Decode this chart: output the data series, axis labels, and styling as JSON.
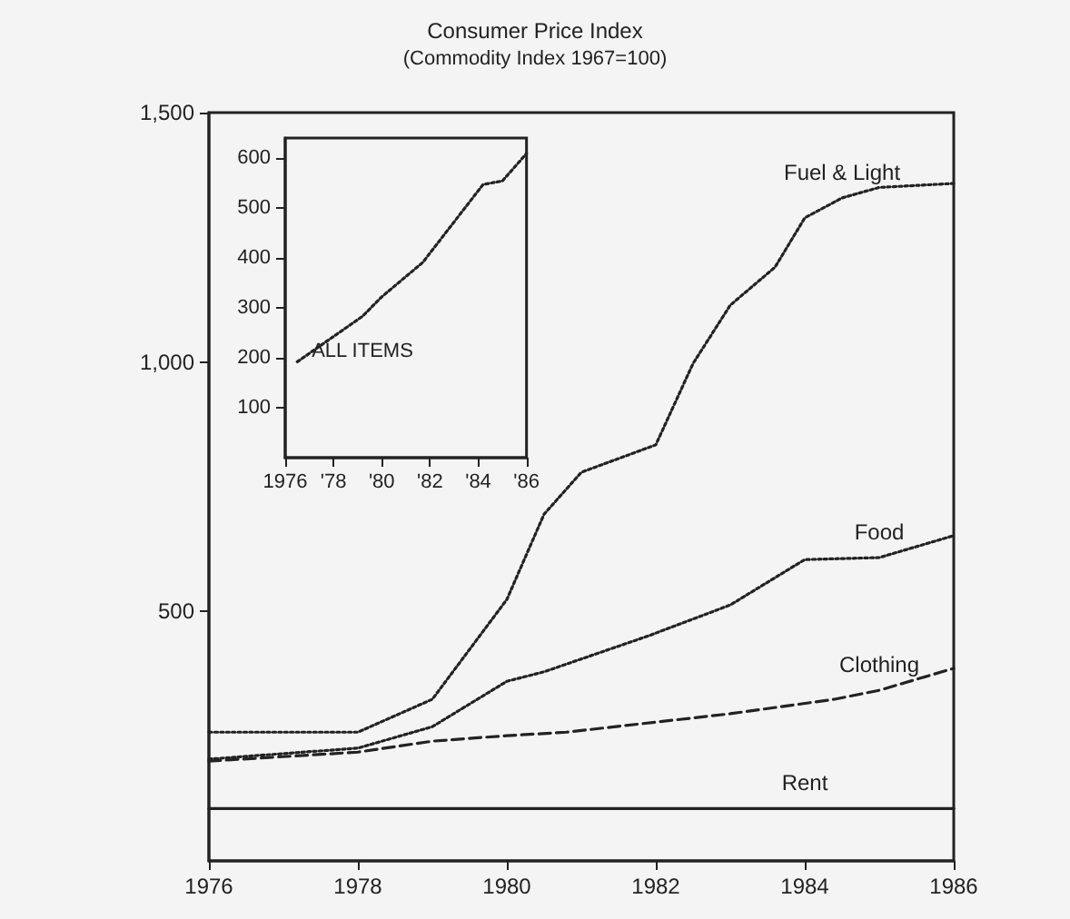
{
  "chart_data": [
    {
      "type": "line",
      "title": "Consumer Price Index",
      "subtitle": "(Commodity Index 1967=100)",
      "xlim": [
        1976,
        1986
      ],
      "xticks": [
        1976,
        1978,
        1980,
        1982,
        1984,
        1986
      ],
      "ylim": [
        0,
        1500
      ],
      "yticks": [
        500,
        {
          "value": 1000,
          "label": "1,000"
        },
        {
          "value": 1500,
          "label": "1,500"
        }
      ],
      "grid": false,
      "legend": false,
      "marker": "none",
      "series": [
        {
          "name": "Fuel & Light",
          "color": "#222222",
          "line_style": "dotted",
          "x": [
            1976,
            1978,
            1979,
            1980,
            1980.5,
            1981,
            1982,
            1982.5,
            1983,
            1983.6,
            1984,
            1984.5,
            1985,
            1986
          ],
          "values": [
            258,
            258,
            324,
            524,
            695,
            779,
            834,
            997,
            1114,
            1190,
            1289,
            1329,
            1350,
            1358
          ]
        },
        {
          "name": "Food",
          "color": "#222222",
          "line_style": "dotted",
          "x": [
            1976,
            1978,
            1979,
            1980,
            1980.5,
            1981.9,
            1983,
            1984,
            1985,
            1986
          ],
          "values": [
            204,
            226,
            269,
            360,
            379,
            451,
            513,
            604,
            608,
            652
          ]
        },
        {
          "name": "Clothing",
          "color": "#222222",
          "line_style": "dashed",
          "x": [
            1976,
            1978,
            1979,
            1980,
            1980.8,
            1983,
            1984.4,
            1985,
            1986
          ],
          "values": [
            200,
            218,
            240,
            251,
            258,
            295,
            324,
            342,
            386
          ]
        },
        {
          "name": "Rent",
          "color": "#222222",
          "line_style": "solid",
          "x": [
            1976,
            1978,
            1980,
            1982,
            1984,
            1986
          ],
          "values": [
            105,
            105,
            105,
            105,
            105,
            105
          ]
        }
      ]
    },
    {
      "type": "line",
      "xlim": [
        1976,
        1986
      ],
      "xticks": [
        1976,
        {
          "value": 1978,
          "label": "'78"
        },
        {
          "value": 1980,
          "label": "'80"
        },
        {
          "value": 1982,
          "label": "'82"
        },
        {
          "value": 1984,
          "label": "'84"
        },
        {
          "value": 1986,
          "label": "'86"
        }
      ],
      "ylim": [
        0,
        640
      ],
      "yticks": [
        100,
        200,
        300,
        400,
        500,
        600
      ],
      "grid": false,
      "legend": false,
      "marker": "none",
      "series": [
        {
          "name": "ALL ITEMS",
          "color": "#222222",
          "line_style": "dotted",
          "x": [
            1976.5,
            1979.2,
            1980,
            1981.7,
            1984.2,
            1985,
            1986
          ],
          "values": [
            192,
            283,
            322,
            391,
            547,
            554,
            609
          ]
        }
      ]
    }
  ]
}
